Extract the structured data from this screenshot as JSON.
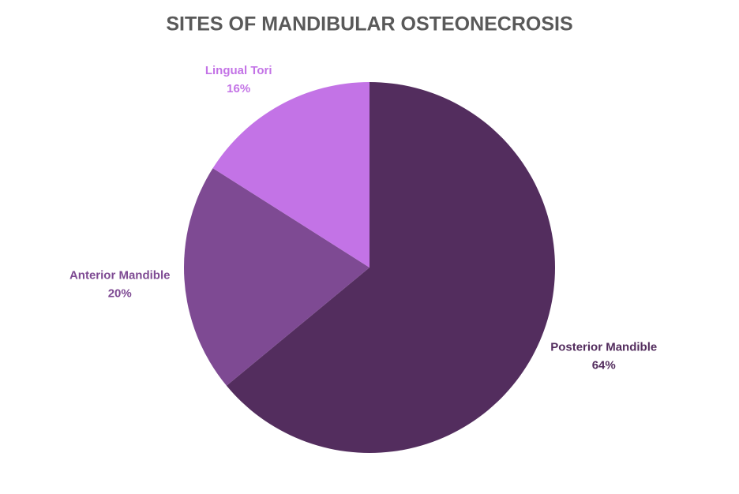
{
  "chart_data": {
    "type": "pie",
    "title": "SITES OF MANDIBULAR OSTEONECROSIS",
    "categories": [
      "Posterior Mandible",
      "Anterior Mandible",
      "Lingual Tori"
    ],
    "values": [
      64,
      20,
      16
    ],
    "value_labels": [
      "64%",
      "20%",
      "16%"
    ],
    "colors": [
      "#532d5e",
      "#7e4a93",
      "#c373e6"
    ]
  }
}
